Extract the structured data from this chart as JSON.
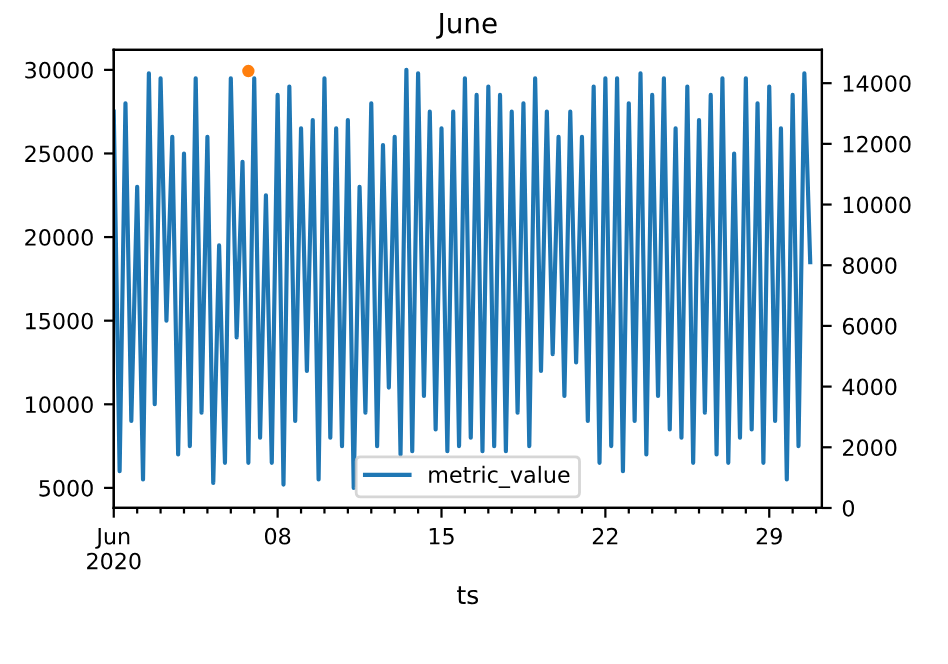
{
  "chart_data": {
    "type": "line",
    "title": "June",
    "xlabel": "ts",
    "x": [
      "2020-06-01T00:00",
      "2020-06-01T06:00",
      "2020-06-01T12:00",
      "2020-06-01T18:00",
      "2020-06-02T00:00",
      "2020-06-02T06:00",
      "2020-06-02T12:00",
      "2020-06-02T18:00",
      "2020-06-03T00:00",
      "2020-06-03T06:00",
      "2020-06-03T12:00",
      "2020-06-03T18:00",
      "2020-06-04T00:00",
      "2020-06-04T06:00",
      "2020-06-04T12:00",
      "2020-06-04T18:00",
      "2020-06-05T00:00",
      "2020-06-05T06:00",
      "2020-06-05T12:00",
      "2020-06-05T18:00",
      "2020-06-06T00:00",
      "2020-06-06T06:00",
      "2020-06-06T12:00",
      "2020-06-06T18:00",
      "2020-06-07T00:00",
      "2020-06-07T06:00",
      "2020-06-07T12:00",
      "2020-06-07T18:00",
      "2020-06-08T00:00",
      "2020-06-08T06:00",
      "2020-06-08T12:00",
      "2020-06-08T18:00",
      "2020-06-09T00:00",
      "2020-06-09T06:00",
      "2020-06-09T12:00",
      "2020-06-09T18:00",
      "2020-06-10T00:00",
      "2020-06-10T06:00",
      "2020-06-10T12:00",
      "2020-06-10T18:00",
      "2020-06-11T00:00",
      "2020-06-11T06:00",
      "2020-06-11T12:00",
      "2020-06-11T18:00",
      "2020-06-12T00:00",
      "2020-06-12T06:00",
      "2020-06-12T12:00",
      "2020-06-12T18:00",
      "2020-06-13T00:00",
      "2020-06-13T06:00",
      "2020-06-13T12:00",
      "2020-06-13T18:00",
      "2020-06-14T00:00",
      "2020-06-14T06:00",
      "2020-06-14T12:00",
      "2020-06-14T18:00",
      "2020-06-15T00:00",
      "2020-06-15T06:00",
      "2020-06-15T12:00",
      "2020-06-15T18:00",
      "2020-06-16T00:00",
      "2020-06-16T06:00",
      "2020-06-16T12:00",
      "2020-06-16T18:00",
      "2020-06-17T00:00",
      "2020-06-17T06:00",
      "2020-06-17T12:00",
      "2020-06-17T18:00",
      "2020-06-18T00:00",
      "2020-06-18T06:00",
      "2020-06-18T12:00",
      "2020-06-18T18:00",
      "2020-06-19T00:00",
      "2020-06-19T06:00",
      "2020-06-19T12:00",
      "2020-06-19T18:00",
      "2020-06-20T00:00",
      "2020-06-20T06:00",
      "2020-06-20T12:00",
      "2020-06-20T18:00",
      "2020-06-21T00:00",
      "2020-06-21T06:00",
      "2020-06-21T12:00",
      "2020-06-21T18:00",
      "2020-06-22T00:00",
      "2020-06-22T06:00",
      "2020-06-22T12:00",
      "2020-06-22T18:00",
      "2020-06-23T00:00",
      "2020-06-23T06:00",
      "2020-06-23T12:00",
      "2020-06-23T18:00",
      "2020-06-24T00:00",
      "2020-06-24T06:00",
      "2020-06-24T12:00",
      "2020-06-24T18:00",
      "2020-06-25T00:00",
      "2020-06-25T06:00",
      "2020-06-25T12:00",
      "2020-06-25T18:00",
      "2020-06-26T00:00",
      "2020-06-26T06:00",
      "2020-06-26T12:00",
      "2020-06-26T18:00",
      "2020-06-27T00:00",
      "2020-06-27T06:00",
      "2020-06-27T12:00",
      "2020-06-27T18:00",
      "2020-06-28T00:00",
      "2020-06-28T06:00",
      "2020-06-28T12:00",
      "2020-06-28T18:00",
      "2020-06-29T00:00",
      "2020-06-29T06:00",
      "2020-06-29T12:00",
      "2020-06-29T18:00",
      "2020-06-30T00:00",
      "2020-06-30T06:00",
      "2020-06-30T12:00",
      "2020-06-30T18:00"
    ],
    "series": [
      {
        "name": "metric_value",
        "color": "#1f77b4",
        "marker": "none",
        "values": [
          27500,
          6000,
          28000,
          9000,
          23000,
          5500,
          29800,
          10000,
          29500,
          15000,
          26000,
          7000,
          25000,
          7500,
          29500,
          9500,
          26000,
          5300,
          19500,
          6500,
          29500,
          14000,
          24500,
          6500,
          29500,
          8000,
          22500,
          6500,
          28500,
          5200,
          29000,
          9000,
          26500,
          12000,
          27000,
          5500,
          29500,
          8000,
          26500,
          7500,
          27000,
          5000,
          23000,
          9500,
          28000,
          7500,
          25500,
          11000,
          26000,
          7000,
          30000,
          7200,
          29800,
          10500,
          27500,
          8500,
          26500,
          7200,
          27500,
          7500,
          29500,
          8000,
          28500,
          7200,
          29000,
          7500,
          28500,
          7200,
          27500,
          9500,
          28000,
          7500,
          29500,
          12000,
          27500,
          13000,
          26000,
          10500,
          27500,
          12500,
          26000,
          9000,
          29000,
          6500,
          29500,
          7500,
          29500,
          6000,
          28000,
          9000,
          29800,
          7000,
          28500,
          10500,
          29500,
          8500,
          26500,
          8000,
          29000,
          6500,
          27000,
          9500,
          28500,
          7000,
          29500,
          6500,
          25000,
          8000,
          29500,
          8500,
          28000,
          6500,
          29000,
          9000,
          26500,
          5500,
          28500,
          7500,
          29800,
          18500
        ]
      },
      {
        "type": "scatter",
        "axis": "y2",
        "color": "#ff7f0e",
        "marker": "circle",
        "x": [
          "2020-06-06T18:00"
        ],
        "values": [
          14400
        ]
      }
    ],
    "xlim": [
      "2020-06-01T00:00",
      "2020-07-01T06:00"
    ],
    "xticks": [
      {
        "value": "2020-06-01",
        "label": "Jun\n2020"
      },
      {
        "value": "2020-06-02",
        "label": null
      },
      {
        "value": "2020-06-03",
        "label": null
      },
      {
        "value": "2020-06-04",
        "label": null
      },
      {
        "value": "2020-06-05",
        "label": null
      },
      {
        "value": "2020-06-06",
        "label": null
      },
      {
        "value": "2020-06-07",
        "label": null
      },
      {
        "value": "2020-06-08",
        "label": "08"
      },
      {
        "value": "2020-06-09",
        "label": null
      },
      {
        "value": "2020-06-10",
        "label": null
      },
      {
        "value": "2020-06-11",
        "label": null
      },
      {
        "value": "2020-06-12",
        "label": null
      },
      {
        "value": "2020-06-13",
        "label": null
      },
      {
        "value": "2020-06-14",
        "label": null
      },
      {
        "value": "2020-06-15",
        "label": "15"
      },
      {
        "value": "2020-06-16",
        "label": null
      },
      {
        "value": "2020-06-17",
        "label": null
      },
      {
        "value": "2020-06-18",
        "label": null
      },
      {
        "value": "2020-06-19",
        "label": null
      },
      {
        "value": "2020-06-20",
        "label": null
      },
      {
        "value": "2020-06-21",
        "label": null
      },
      {
        "value": "2020-06-22",
        "label": "22"
      },
      {
        "value": "2020-06-23",
        "label": null
      },
      {
        "value": "2020-06-24",
        "label": null
      },
      {
        "value": "2020-06-25",
        "label": null
      },
      {
        "value": "2020-06-26",
        "label": null
      },
      {
        "value": "2020-06-27",
        "label": null
      },
      {
        "value": "2020-06-28",
        "label": null
      },
      {
        "value": "2020-06-29",
        "label": "29"
      },
      {
        "value": "2020-06-30",
        "label": null
      },
      {
        "value": "2020-07-01",
        "label": null
      }
    ],
    "ylim": [
      3800,
      31200
    ],
    "yticks": [
      5000,
      10000,
      15000,
      20000,
      25000,
      30000
    ],
    "y2lim": [
      0,
      15100
    ],
    "y2ticks": [
      0,
      2000,
      4000,
      6000,
      8000,
      10000,
      12000,
      14000
    ],
    "legend": "bottom"
  }
}
